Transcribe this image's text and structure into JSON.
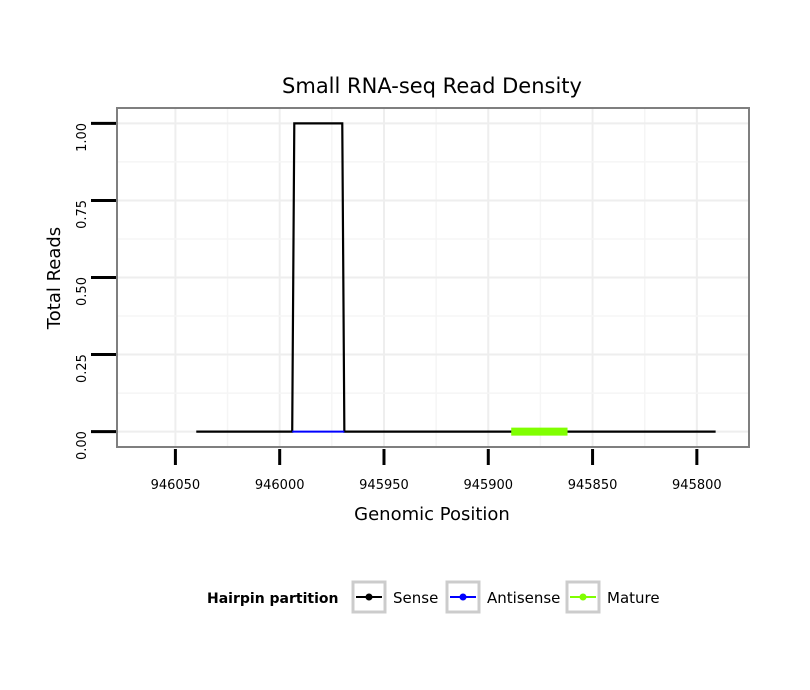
{
  "chart_data": {
    "type": "line",
    "title": "Small RNA-seq Read Density",
    "xlabel": "Genomic Position",
    "ylabel": "Total Reads",
    "x_reversed": true,
    "xlim": [
      946078,
      945775
    ],
    "ylim": [
      -0.05,
      1.05
    ],
    "x_ticks": [
      946050,
      946000,
      945950,
      945900,
      945850,
      945800
    ],
    "x_tick_labels": [
      "946050",
      "946000",
      "945950",
      "945900",
      "945850",
      "945800"
    ],
    "y_ticks": [
      0,
      0.25,
      0.5,
      0.75,
      1.0
    ],
    "y_tick_labels": [
      "0.00",
      "0.25",
      "0.50",
      "0.75",
      "1.00"
    ],
    "grid": true,
    "legend": {
      "title": "Hairpin partition",
      "position": "bottom"
    },
    "series": [
      {
        "name": "Sense",
        "color": "#000000",
        "x": [
          946040,
          945994,
          945993,
          945970,
          945969,
          945791
        ],
        "y": [
          0,
          0,
          1,
          1,
          0,
          0
        ]
      },
      {
        "name": "Antisense",
        "color": "#0000ff",
        "x": [
          945994,
          945969
        ],
        "y": [
          0,
          0
        ]
      },
      {
        "name": "Mature",
        "color": "#80ff00",
        "x": [
          945889,
          945862
        ],
        "y": [
          0,
          0
        ]
      }
    ]
  }
}
